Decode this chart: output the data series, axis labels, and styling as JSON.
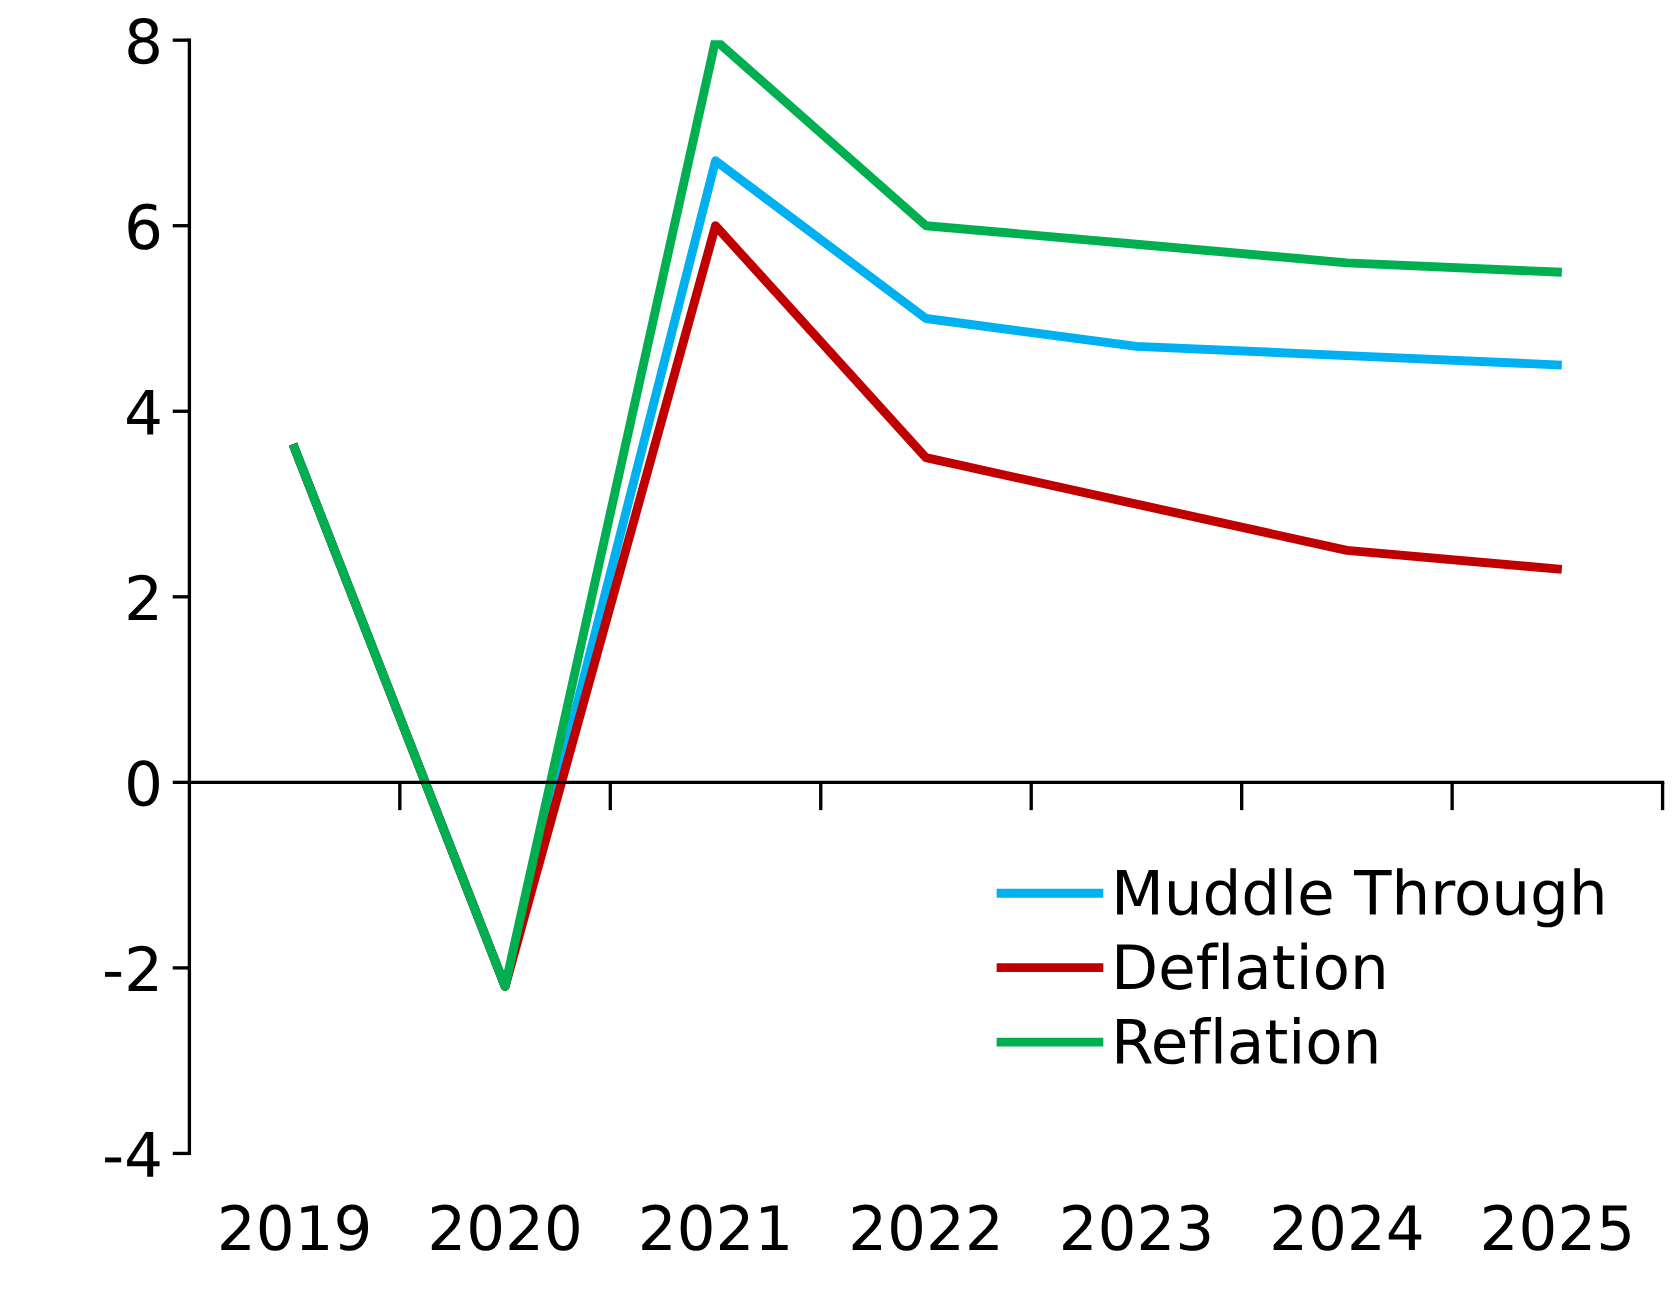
{
  "chart_data": {
    "type": "line",
    "categories": [
      "2019",
      "2020",
      "2021",
      "2022",
      "2023",
      "2024",
      "2025"
    ],
    "series": [
      {
        "name": "Muddle Through",
        "color": "#00b0f0",
        "values": [
          3.6,
          -2.2,
          6.7,
          5.0,
          4.7,
          4.6,
          4.5
        ]
      },
      {
        "name": "Deflation",
        "color": "#c00000",
        "values": [
          3.6,
          -2.2,
          6.0,
          3.5,
          3.0,
          2.5,
          2.3
        ]
      },
      {
        "name": "Reflation",
        "color": "#00b050",
        "values": [
          3.6,
          -2.2,
          8.0,
          6.0,
          5.8,
          5.6,
          5.5
        ]
      }
    ],
    "ylim": [
      -4,
      8
    ],
    "yticks": [
      -4,
      -2,
      0,
      2,
      4,
      6,
      8
    ],
    "legend": "bottom right",
    "marker": "none",
    "line_style": "solid"
  }
}
